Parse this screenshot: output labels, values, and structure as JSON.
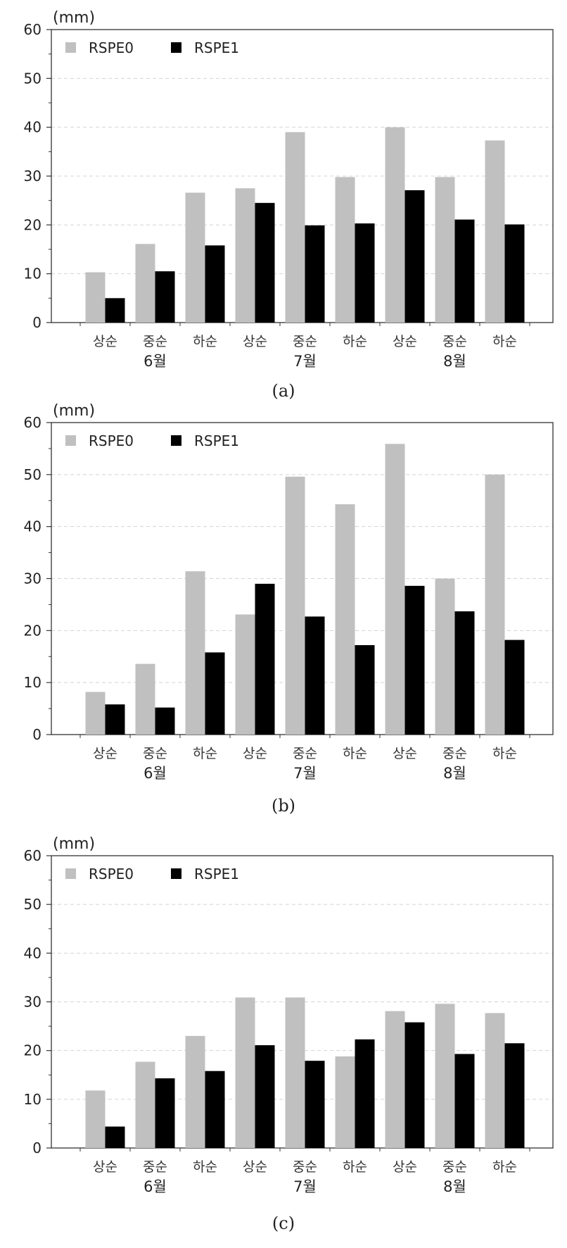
{
  "chart_data": [
    {
      "type": "bar",
      "panel_label": "(a)",
      "unit": "(mm)",
      "categories": [
        "상순",
        "중순",
        "하순",
        "상순",
        "중순",
        "하순",
        "상순",
        "중순",
        "하순"
      ],
      "groups": [
        {
          "label": "6월",
          "start": 0,
          "end": 2
        },
        {
          "label": "7월",
          "start": 3,
          "end": 5
        },
        {
          "label": "8월",
          "start": 6,
          "end": 8
        }
      ],
      "ylim": [
        0,
        60
      ],
      "yticks": [
        0,
        10,
        20,
        30,
        40,
        50,
        60
      ],
      "grid": true,
      "legend_position": "top-left",
      "series": [
        {
          "name": "RSPE0",
          "color": "#c0c0c0",
          "values": [
            10.3,
            16.1,
            26.6,
            27.5,
            39.0,
            29.8,
            40.0,
            29.8,
            37.3
          ]
        },
        {
          "name": "RSPE1",
          "color": "#000000",
          "values": [
            5.0,
            10.5,
            15.8,
            24.5,
            19.9,
            20.3,
            27.1,
            21.1,
            20.1
          ]
        }
      ]
    },
    {
      "type": "bar",
      "panel_label": "(b)",
      "unit": "(mm)",
      "categories": [
        "상순",
        "중순",
        "하순",
        "상순",
        "중순",
        "하순",
        "상순",
        "중순",
        "하순"
      ],
      "groups": [
        {
          "label": "6월",
          "start": 0,
          "end": 2
        },
        {
          "label": "7월",
          "start": 3,
          "end": 5
        },
        {
          "label": "8월",
          "start": 6,
          "end": 8
        }
      ],
      "ylim": [
        0,
        60
      ],
      "yticks": [
        0,
        10,
        20,
        30,
        40,
        50,
        60
      ],
      "grid": true,
      "legend_position": "top-left",
      "series": [
        {
          "name": "RSPE0",
          "color": "#c0c0c0",
          "values": [
            8.2,
            13.6,
            31.4,
            23.1,
            49.6,
            44.3,
            55.9,
            30.0,
            50.0
          ]
        },
        {
          "name": "RSPE1",
          "color": "#000000",
          "values": [
            5.8,
            5.2,
            15.8,
            29.0,
            22.7,
            17.2,
            28.6,
            23.7,
            18.2
          ]
        }
      ]
    },
    {
      "type": "bar",
      "panel_label": "(c)",
      "unit": "(mm)",
      "categories": [
        "상순",
        "중순",
        "하순",
        "상순",
        "중순",
        "하순",
        "상순",
        "중순",
        "하순"
      ],
      "groups": [
        {
          "label": "6월",
          "start": 0,
          "end": 2
        },
        {
          "label": "7월",
          "start": 3,
          "end": 5
        },
        {
          "label": "8월",
          "start": 6,
          "end": 8
        }
      ],
      "ylim": [
        0,
        60
      ],
      "yticks": [
        0,
        10,
        20,
        30,
        40,
        50,
        60
      ],
      "grid": true,
      "legend_position": "top-left",
      "series": [
        {
          "name": "RSPE0",
          "color": "#c0c0c0",
          "values": [
            11.8,
            17.7,
            23.0,
            30.9,
            30.9,
            18.8,
            28.1,
            29.6,
            27.7
          ]
        },
        {
          "name": "RSPE1",
          "color": "#000000",
          "values": [
            4.4,
            14.3,
            15.8,
            21.1,
            17.9,
            22.3,
            25.8,
            19.3,
            21.5
          ]
        }
      ]
    }
  ]
}
